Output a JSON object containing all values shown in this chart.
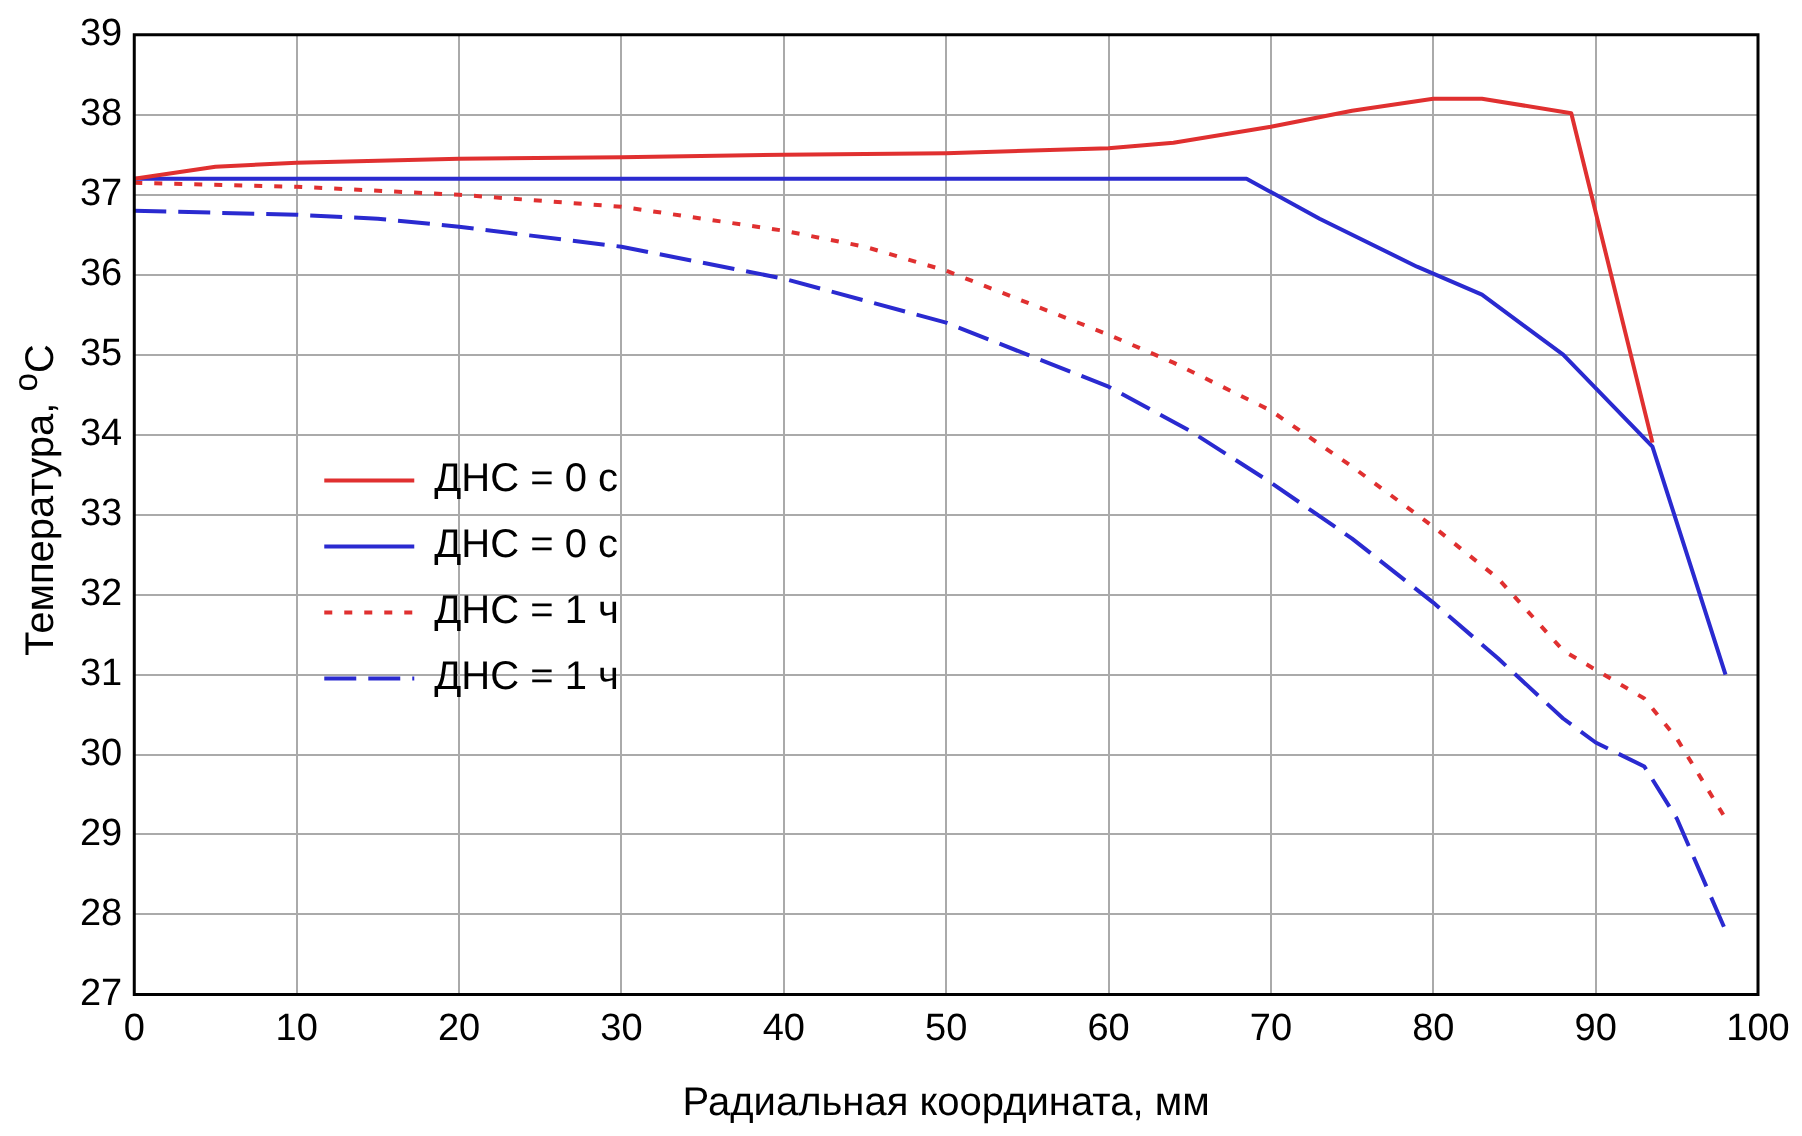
{
  "chart_data": {
    "type": "line",
    "xlabel": "Радиальная координата, мм",
    "ylabel": "Температура, $^{o}$C",
    "xlim": [
      0,
      100
    ],
    "xticks": [
      0,
      10,
      20,
      30,
      40,
      50,
      60,
      70,
      80,
      90,
      100
    ],
    "ylim": [
      27,
      39
    ],
    "yticks": [
      27,
      28,
      29,
      30,
      31,
      32,
      33,
      34,
      35,
      36,
      37,
      38,
      39
    ],
    "grid": true,
    "legend": "left",
    "marker": "none",
    "series": [
      {
        "name": "ДНС = 0 с",
        "color": "#e03030",
        "line_style": "solid",
        "x": [
          0,
          5,
          10,
          20,
          30,
          40,
          50,
          60,
          64,
          70,
          75,
          80,
          83,
          88.5,
          93.5
        ],
        "values": [
          37.2,
          37.35,
          37.4,
          37.45,
          37.47,
          37.5,
          37.52,
          37.58,
          37.65,
          37.85,
          38.05,
          38.2,
          38.2,
          38.02,
          33.9
        ]
      },
      {
        "name": "ДНС = 0 с",
        "color": "#2a2ad0",
        "line_style": "solid",
        "x": [
          0,
          68.5,
          73,
          79,
          83,
          88,
          93.5,
          98
        ],
        "values": [
          37.2,
          37.2,
          36.7,
          36.1,
          35.75,
          35.0,
          33.85,
          31.0
        ]
      },
      {
        "name": "ДНС = 1 ч",
        "color": "#e03030",
        "line_style": "dotted",
        "x": [
          0,
          10,
          20,
          30,
          40,
          45,
          50,
          55,
          60,
          64,
          70,
          75,
          80,
          84,
          88,
          93,
          95,
          98
        ],
        "values": [
          37.15,
          37.1,
          37.0,
          36.85,
          36.55,
          36.35,
          36.05,
          35.65,
          35.25,
          34.9,
          34.3,
          33.6,
          32.85,
          32.2,
          31.3,
          30.7,
          30.2,
          29.2
        ]
      },
      {
        "name": "ДНС = 1 ч",
        "color": "#2a2ad0",
        "line_style": "dashed",
        "x": [
          0,
          10,
          15,
          20,
          30,
          40,
          50,
          55,
          60,
          65,
          70,
          75,
          80,
          84,
          88,
          90,
          93,
          95,
          98
        ],
        "values": [
          36.8,
          36.75,
          36.7,
          36.6,
          36.35,
          35.95,
          35.4,
          35.0,
          34.6,
          34.05,
          33.4,
          32.7,
          31.9,
          31.2,
          30.45,
          30.15,
          29.85,
          29.2,
          27.8
        ]
      }
    ]
  }
}
